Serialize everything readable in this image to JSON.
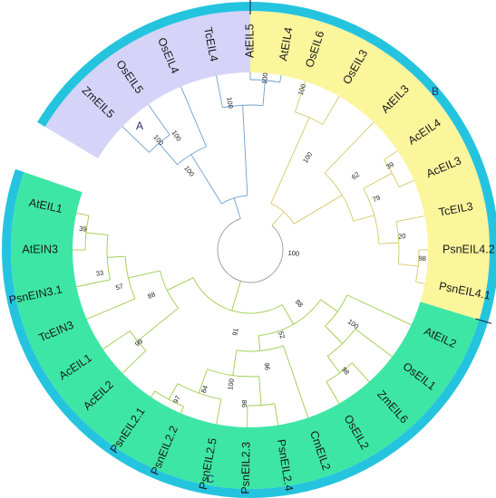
{
  "tree": {
    "colors": {
      "ring": "#25c4de",
      "clade_A_fill": "#d6d3f8",
      "clade_B_fill": "#fbf59c",
      "clade_C_fill": "#3ee6a5",
      "clade_A_branch": "#6a9fd0",
      "clade_B_branch": "#d6c86a",
      "clade_C_branch": "#9ccc4a",
      "root_branch": "#9a9a9a",
      "separator": "#1f2f4f"
    },
    "clades": [
      {
        "id": "A",
        "label": "A"
      },
      {
        "id": "B",
        "label": "B"
      },
      {
        "id": "C",
        "label": "C"
      }
    ],
    "leaves": [
      {
        "id": "OsEIL6",
        "label": "OsEIL6",
        "clade": "B"
      },
      {
        "id": "OsEIL3",
        "label": "OsEIL3",
        "clade": "B"
      },
      {
        "id": "AtEIL3",
        "label": "AtEIL3",
        "clade": "B"
      },
      {
        "id": "AcEIL4",
        "label": "AcEIL4",
        "clade": "B"
      },
      {
        "id": "AcEIL3",
        "label": "AcEIL3",
        "clade": "B"
      },
      {
        "id": "TcEIL3",
        "label": "TcEIL3",
        "clade": "B"
      },
      {
        "id": "PsnEIL4.2",
        "label": "PsnEIL4.2",
        "clade": "B"
      },
      {
        "id": "PsnEIL4.1",
        "label": "PsnEIL4.1",
        "clade": "B"
      },
      {
        "id": "AtEIL2",
        "label": "AtEIL2",
        "clade": "C"
      },
      {
        "id": "OsEIL1",
        "label": "OsEIL1",
        "clade": "C"
      },
      {
        "id": "ZmEIL6",
        "label": "ZmEIL6",
        "clade": "C"
      },
      {
        "id": "OsEIL2",
        "label": "OsEIL2",
        "clade": "C"
      },
      {
        "id": "CmEIL2",
        "label": "CmEIL2",
        "clade": "C"
      },
      {
        "id": "PsnEIL2.4",
        "label": "PsnEIL2.4",
        "clade": "C"
      },
      {
        "id": "PsnEIL2.3",
        "label": "PsnEIL2.3",
        "clade": "C"
      },
      {
        "id": "PsnEIL2.5",
        "label": "PsnEIL2.5",
        "clade": "C"
      },
      {
        "id": "PsnEIL2.2",
        "label": "PsnEIL2.2",
        "clade": "C"
      },
      {
        "id": "PsnEIL2.1",
        "label": "PsnEIL2.1",
        "clade": "C"
      },
      {
        "id": "AcEIL2",
        "label": "AcEIL2",
        "clade": "C"
      },
      {
        "id": "AcEIL1",
        "label": "AcEIL1",
        "clade": "C"
      },
      {
        "id": "TcEIN3",
        "label": "TcEIN3",
        "clade": "C"
      },
      {
        "id": "PsnEIN3.1",
        "label": "PsnEIN3.1",
        "clade": "C"
      },
      {
        "id": "AtEIN3",
        "label": "AtEIN3",
        "clade": "C"
      },
      {
        "id": "AtEIL1",
        "label": "AtEIL1",
        "clade": "C"
      },
      {
        "id": "ZmEIL5",
        "label": "ZmEIL5",
        "clade": "A"
      },
      {
        "id": "OsEIL5",
        "label": "OsEIL5",
        "clade": "A"
      },
      {
        "id": "OsEIL4",
        "label": "OsEIL4",
        "clade": "A"
      },
      {
        "id": "TcEIL4",
        "label": "TcEIL4",
        "clade": "A"
      },
      {
        "id": "AtEIL5",
        "label": "AtEIL5",
        "clade": "A"
      },
      {
        "id": "AtEIL4",
        "label": "AtEIL4",
        "clade": "A"
      }
    ],
    "bootstrap": [
      {
        "id": "bs-b-os",
        "value": "100"
      },
      {
        "id": "bs-b-root",
        "value": "100"
      },
      {
        "id": "bs-b-acs",
        "value": "39"
      },
      {
        "id": "bs-b-62",
        "value": "62"
      },
      {
        "id": "bs-b-79",
        "value": "79"
      },
      {
        "id": "bs-b-20",
        "value": "20"
      },
      {
        "id": "bs-b-psn4",
        "value": "98"
      },
      {
        "id": "bs-bc",
        "value": "100"
      },
      {
        "id": "bs-c-88",
        "value": "88"
      },
      {
        "id": "bs-c-52",
        "value": "52"
      },
      {
        "id": "bs-c-osz",
        "value": "100"
      },
      {
        "id": "bs-c-zmos",
        "value": "98"
      },
      {
        "id": "bs-c-91",
        "value": "91"
      },
      {
        "id": "bs-c-96",
        "value": "96"
      },
      {
        "id": "bs-c-98",
        "value": "98"
      },
      {
        "id": "bs-c-100",
        "value": "100"
      },
      {
        "id": "bs-c-84",
        "value": "84"
      },
      {
        "id": "bs-c-97",
        "value": "97"
      },
      {
        "id": "bs-c-99",
        "value": "99"
      },
      {
        "id": "bs-c-88b",
        "value": "88"
      },
      {
        "id": "bs-c-57",
        "value": "57"
      },
      {
        "id": "bs-c-33",
        "value": "33"
      },
      {
        "id": "bs-c-39",
        "value": "39"
      },
      {
        "id": "bs-a-root",
        "value": "100"
      },
      {
        "id": "bs-a-zmos",
        "value": "100"
      },
      {
        "id": "bs-a-os",
        "value": "100"
      },
      {
        "id": "bs-a-at",
        "value": "100"
      },
      {
        "id": "bs-a-100",
        "value": "100"
      }
    ]
  }
}
